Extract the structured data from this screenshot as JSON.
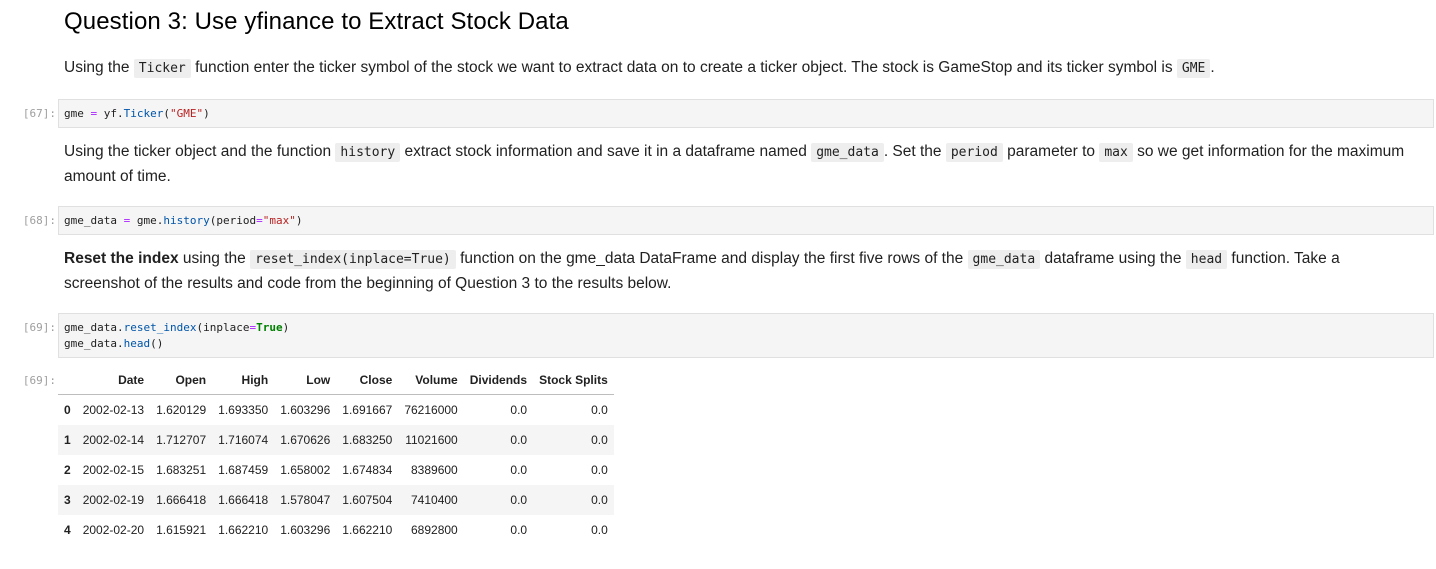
{
  "heading": "Question 3: Use yfinance to Extract Stock Data",
  "para1": {
    "t1": "Using the ",
    "c1": "Ticker",
    "t2": " function enter the ticker symbol of the stock we want to extract data on to create a ticker object. The stock is GameStop and its ticker symbol is ",
    "c2": "GME",
    "t3": "."
  },
  "cell67": {
    "prompt": "[67]:",
    "tokens": [
      "gme",
      " = ",
      "yf",
      ".",
      "Ticker",
      "(",
      "\"GME\"",
      ")"
    ]
  },
  "para2": {
    "t1": "Using the ticker object and the function ",
    "c1": "history",
    "t2": " extract stock information and save it in a dataframe named ",
    "c2": "gme_data",
    "t3": ". Set the ",
    "c3": "period",
    "t4": " parameter to ",
    "c4": "max",
    "t5": " so we get information for the maximum amount of time."
  },
  "cell68": {
    "prompt": "[68]:",
    "tokens": [
      "gme_data",
      " = ",
      "gme",
      ".",
      "history",
      "(",
      "period",
      "=",
      "\"max\"",
      ")"
    ]
  },
  "para3": {
    "bold": "Reset the index",
    "t1": " using the ",
    "c1": "reset_index(inplace=True)",
    "t2": " function on the gme_data DataFrame and display the first five rows of the ",
    "c2": "gme_data",
    "t3": " dataframe using the ",
    "c3": "head",
    "t4": " function. Take a screenshot of the results and code from the beginning of Question 3 to the results below."
  },
  "cell69": {
    "prompt": "[69]:",
    "line1": [
      "gme_data",
      ".",
      "reset_index",
      "(",
      "inplace",
      "=",
      "True",
      ")"
    ],
    "line2": [
      "gme_data",
      ".",
      "head",
      "()"
    ]
  },
  "output69": {
    "prompt": "[69]:",
    "columns": [
      "",
      "Date",
      "Open",
      "High",
      "Low",
      "Close",
      "Volume",
      "Dividends",
      "Stock Splits"
    ],
    "rows": [
      [
        "0",
        "2002-02-13",
        "1.620129",
        "1.693350",
        "1.603296",
        "1.691667",
        "76216000",
        "0.0",
        "0.0"
      ],
      [
        "1",
        "2002-02-14",
        "1.712707",
        "1.716074",
        "1.670626",
        "1.683250",
        "11021600",
        "0.0",
        "0.0"
      ],
      [
        "2",
        "2002-02-15",
        "1.683251",
        "1.687459",
        "1.658002",
        "1.674834",
        "8389600",
        "0.0",
        "0.0"
      ],
      [
        "3",
        "2002-02-19",
        "1.666418",
        "1.666418",
        "1.578047",
        "1.607504",
        "7410400",
        "0.0",
        "0.0"
      ],
      [
        "4",
        "2002-02-20",
        "1.615921",
        "1.662210",
        "1.603296",
        "1.662210",
        "6892800",
        "0.0",
        "0.0"
      ]
    ]
  },
  "colors": {
    "prompt": "#9e9e9e",
    "cell_bg": "#f5f5f5",
    "code_string": "#ba2121",
    "code_function": "#0055aa",
    "code_keyword": "#008000",
    "code_operator": "#aa22ff"
  }
}
